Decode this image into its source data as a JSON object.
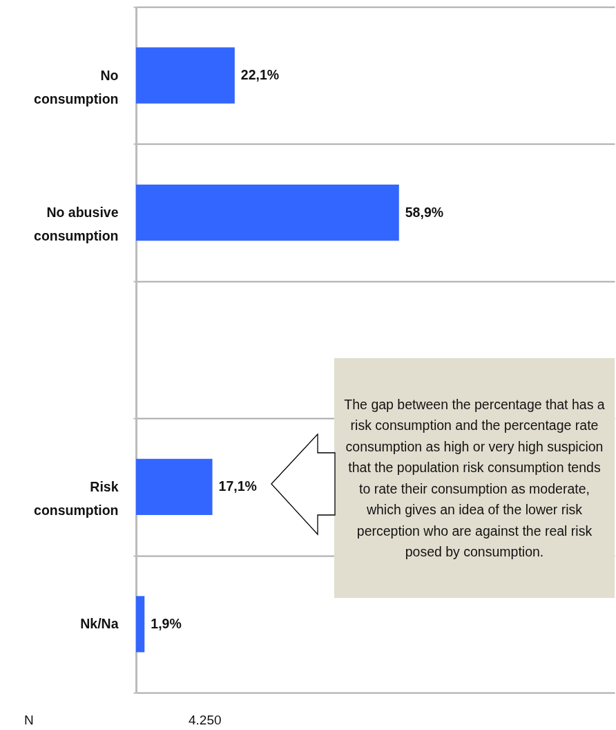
{
  "chart_data": {
    "type": "bar",
    "orientation": "horizontal",
    "categories": [
      "No consumption",
      "No abusive consumption",
      null,
      "Risk consumption",
      "Nk/Na"
    ],
    "values": [
      22.1,
      58.9,
      null,
      17.1,
      1.9
    ],
    "value_labels": [
      "22,1%",
      "58,9%",
      null,
      "17,1%",
      "1,9%"
    ],
    "color": "#3366ff",
    "grid": "y",
    "tick_labels": "y",
    "annotations": [
      "The gap between the percentage that has a risk consumption and the percentage rate consumption as high or very high suspicion that the population risk consumption tends to rate their consumption as moderate, which gives an idea of the lower risk perception who are against the real risk posed by consumption.",
      "N",
      "4.250"
    ]
  }
}
